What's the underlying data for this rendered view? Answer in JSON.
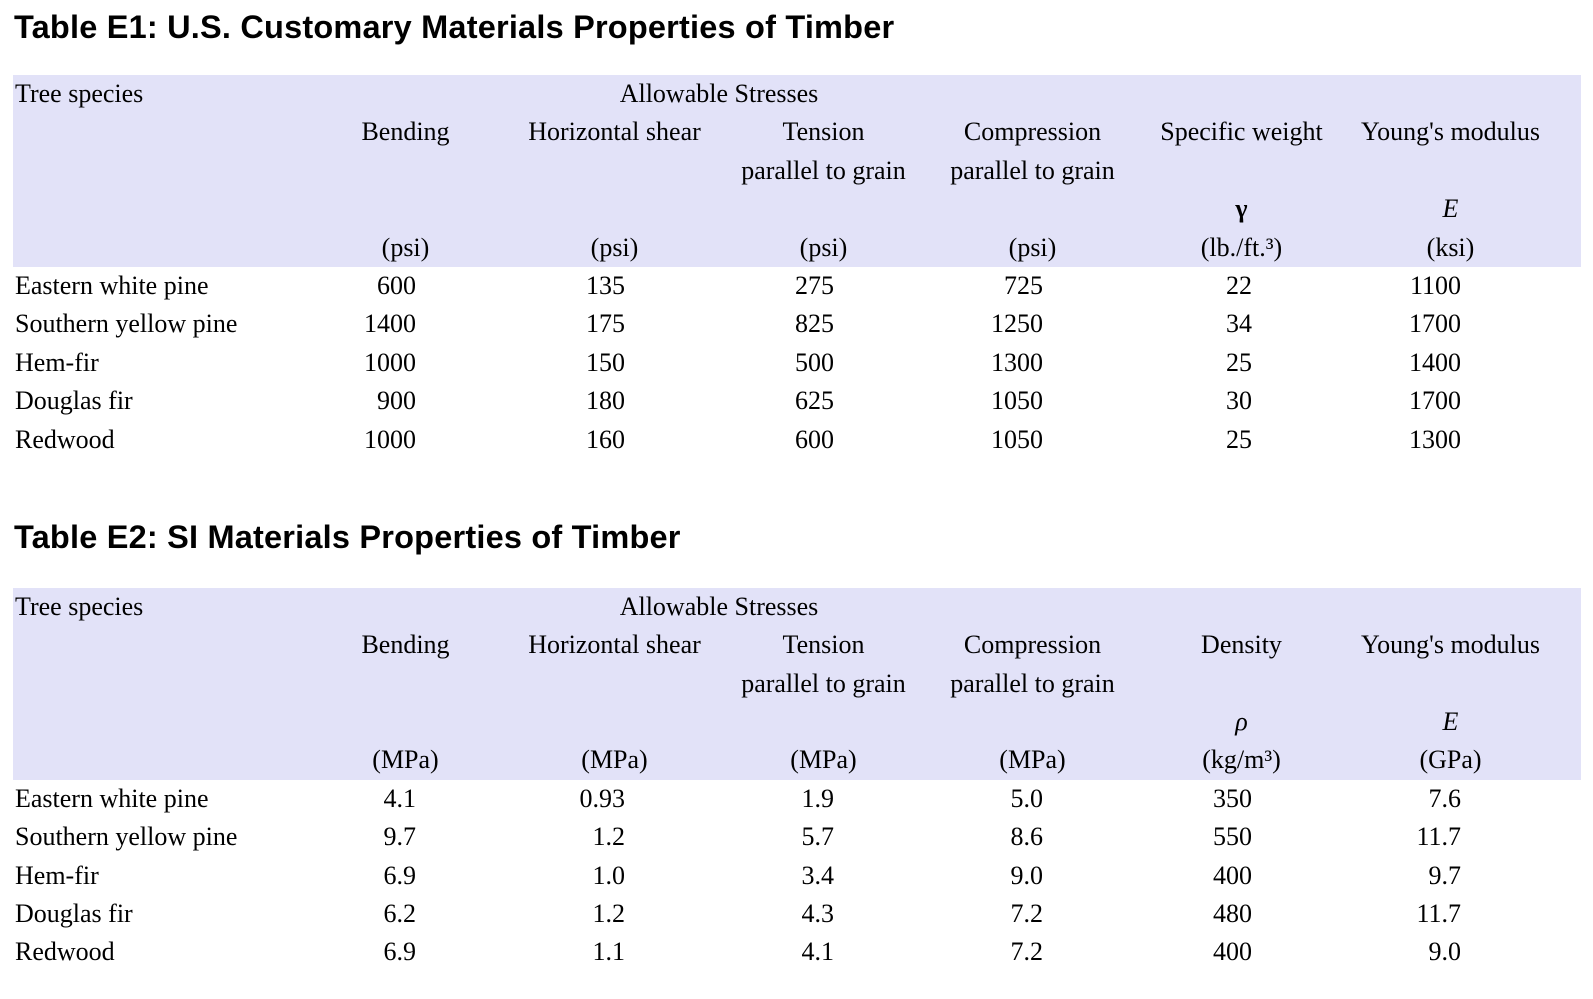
{
  "page": {
    "background_color": "#ffffff",
    "header_band_color": "#e2e2f8",
    "text_color": "#000000"
  },
  "tables": [
    {
      "title": "Table E1: U.S. Customary Materials Properties of Timber",
      "tree_species_label": "Tree species",
      "group_header": "Allowable Stresses",
      "col_line1": [
        "Bending",
        "Horizontal shear",
        "Tension",
        "Compression",
        "Specific weight",
        "Young's modulus"
      ],
      "col_line2": [
        "",
        "",
        "parallel to grain",
        "parallel to grain",
        "",
        ""
      ],
      "symbols": {
        "col5": "γ",
        "col6": "E"
      },
      "units": [
        "(psi)",
        "(psi)",
        "(psi)",
        "(psi)",
        "(lb./ft.³)",
        "(ksi)"
      ],
      "rows": [
        {
          "species": "Eastern white pine",
          "values": [
            "600",
            "135",
            "275",
            "725",
            "22",
            "1100"
          ]
        },
        {
          "species": "Southern yellow pine",
          "values": [
            "1400",
            "175",
            "825",
            "1250",
            "34",
            "1700"
          ]
        },
        {
          "species": "Hem-fir",
          "values": [
            "1000",
            "150",
            "500",
            "1300",
            "25",
            "1400"
          ]
        },
        {
          "species": "Douglas fir",
          "values": [
            "900",
            "180",
            "625",
            "1050",
            "30",
            "1700"
          ]
        },
        {
          "species": "Redwood",
          "values": [
            "1000",
            "160",
            "600",
            "1050",
            "25",
            "1300"
          ]
        }
      ]
    },
    {
      "title": "Table E2: SI Materials Properties of Timber",
      "tree_species_label": "Tree species",
      "group_header": "Allowable Stresses",
      "col_line1": [
        "Bending",
        "Horizontal shear",
        "Tension",
        "Compression",
        "Density",
        "Young's modulus"
      ],
      "col_line2": [
        "",
        "",
        "parallel to grain",
        "parallel to grain",
        "",
        ""
      ],
      "symbols": {
        "col5": "ρ",
        "col6": "E"
      },
      "units": [
        "(MPa)",
        "(MPa)",
        "(MPa)",
        "(MPa)",
        "(kg/m³)",
        "(GPa)"
      ],
      "rows": [
        {
          "species": "Eastern white pine",
          "values": [
            "4.1",
            "0.93",
            "1.9",
            "5.0",
            "350",
            "7.6"
          ]
        },
        {
          "species": "Southern yellow pine",
          "values": [
            "9.7",
            "1.2",
            "5.7",
            "8.6",
            "550",
            "11.7"
          ]
        },
        {
          "species": "Hem-fir",
          "values": [
            "6.9",
            "1.0",
            "3.4",
            "9.0",
            "400",
            "9.7"
          ]
        },
        {
          "species": "Douglas fir",
          "values": [
            "6.2",
            "1.2",
            "4.3",
            "7.2",
            "480",
            "11.7"
          ]
        },
        {
          "species": "Redwood",
          "values": [
            "6.9",
            "1.1",
            "4.1",
            "7.2",
            "400",
            "9.0"
          ]
        }
      ]
    }
  ]
}
